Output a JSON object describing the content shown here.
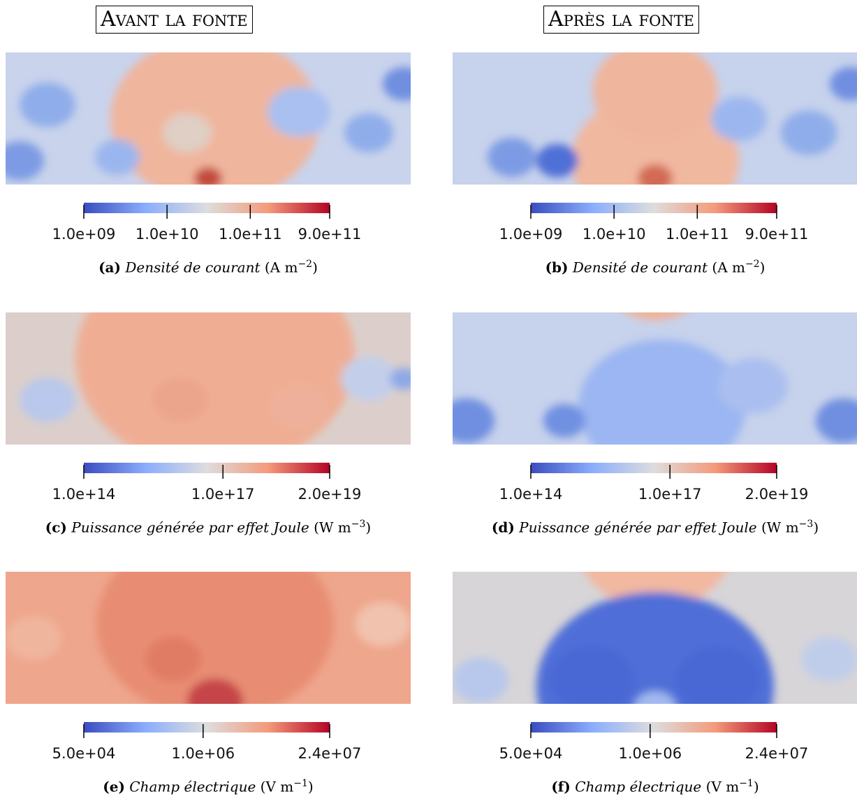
{
  "columns": [
    "Avant la fonte",
    "Après la fonte"
  ],
  "panels": [
    {
      "label": "(a)",
      "caption": "Densité de courant",
      "unit_prefix": "(A m",
      "unit_exponent": "−2",
      "unit_suffix": ")",
      "colorbar": {
        "scale": "log",
        "lim": [
          1000000000.0,
          900000000000.0
        ],
        "ticks": [
          {
            "value": 1000000000.0,
            "label": "1.0e+09"
          },
          {
            "value": 10000000000.0,
            "label": "1.0e+10"
          },
          {
            "value": 100000000000.0,
            "label": "1.0e+11"
          },
          {
            "value": 900000000000.0,
            "label": "9.0e+11"
          }
        ]
      }
    },
    {
      "label": "(b)",
      "caption": "Densité de courant",
      "unit_prefix": "(A m",
      "unit_exponent": "−2",
      "unit_suffix": ")",
      "colorbar": {
        "scale": "log",
        "lim": [
          1000000000.0,
          900000000000.0
        ],
        "ticks": [
          {
            "value": 1000000000.0,
            "label": "1.0e+09"
          },
          {
            "value": 10000000000.0,
            "label": "1.0e+10"
          },
          {
            "value": 100000000000.0,
            "label": "1.0e+11"
          },
          {
            "value": 900000000000.0,
            "label": "9.0e+11"
          }
        ]
      }
    },
    {
      "label": "(c)",
      "caption": "Puissance générée par effet Joule",
      "unit_prefix": "(W m",
      "unit_exponent": "−3",
      "unit_suffix": ")",
      "colorbar": {
        "scale": "log",
        "lim": [
          100000000000000.0,
          2e+19
        ],
        "ticks": [
          {
            "value": 100000000000000.0,
            "label": "1.0e+14"
          },
          {
            "value": 1e+17,
            "label": "1.0e+17"
          },
          {
            "value": 2e+19,
            "label": "2.0e+19"
          }
        ]
      }
    },
    {
      "label": "(d)",
      "caption": "Puissance générée par effet Joule",
      "unit_prefix": "(W m",
      "unit_exponent": "−3",
      "unit_suffix": ")",
      "colorbar": {
        "scale": "log",
        "lim": [
          100000000000000.0,
          2e+19
        ],
        "ticks": [
          {
            "value": 100000000000000.0,
            "label": "1.0e+14"
          },
          {
            "value": 1e+17,
            "label": "1.0e+17"
          },
          {
            "value": 2e+19,
            "label": "2.0e+19"
          }
        ]
      }
    },
    {
      "label": "(e)",
      "caption": "Champ électrique",
      "unit_prefix": "(V m",
      "unit_exponent": "−1",
      "unit_suffix": ")",
      "colorbar": {
        "scale": "log",
        "lim": [
          50000.0,
          24000000.0
        ],
        "ticks": [
          {
            "value": 50000.0,
            "label": "5.0e+04"
          },
          {
            "value": 1000000.0,
            "label": "1.0e+06"
          },
          {
            "value": 24000000.0,
            "label": "2.4e+07"
          }
        ]
      }
    },
    {
      "label": "(f)",
      "caption": "Champ électrique",
      "unit_prefix": "(V m",
      "unit_exponent": "−1",
      "unit_suffix": ")",
      "colorbar": {
        "scale": "log",
        "lim": [
          50000.0,
          24000000.0
        ],
        "ticks": [
          {
            "value": 50000.0,
            "label": "5.0e+04"
          },
          {
            "value": 1000000.0,
            "label": "1.0e+06"
          },
          {
            "value": 24000000.0,
            "label": "2.4e+07"
          }
        ]
      }
    }
  ]
}
